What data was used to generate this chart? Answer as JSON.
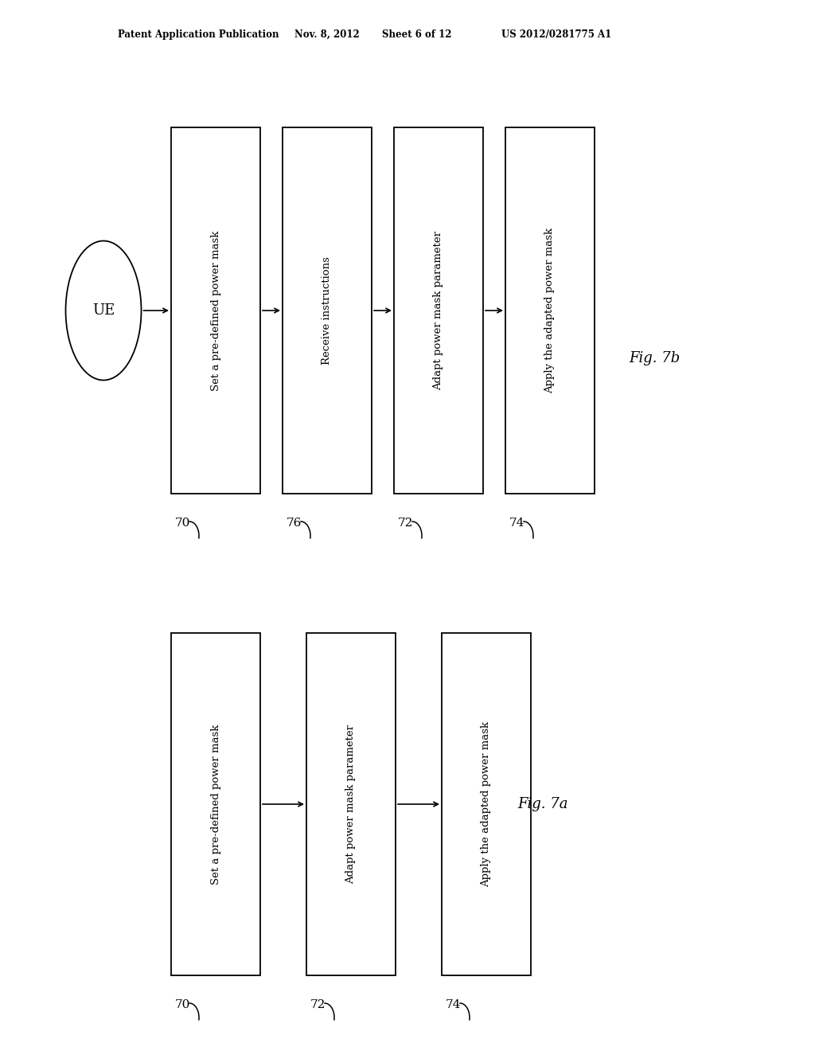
{
  "background_color": "#ffffff",
  "header_text": "Patent Application Publication",
  "header_date": "Nov. 8, 2012",
  "header_sheet": "Sheet 6 of 12",
  "header_patent": "US 2012/0281775 A1",
  "fig7b": {
    "label": "Fig. 7b",
    "ue_label": "UE",
    "boxes": [
      {
        "text": "Set a pre-defined power mask",
        "ref": "70"
      },
      {
        "text": "Receive instructions",
        "ref": "76"
      },
      {
        "text": "Adapt power mask parameter",
        "ref": "72"
      },
      {
        "text": "Apply the adapted power mask",
        "ref": "74"
      }
    ]
  },
  "fig7a": {
    "label": "Fig. 7a",
    "boxes": [
      {
        "text": "Set a pre-defined power mask",
        "ref": "70"
      },
      {
        "text": "Adapt power mask parameter",
        "ref": "72"
      },
      {
        "text": "Apply the adapted power mask",
        "ref": "74"
      }
    ]
  }
}
